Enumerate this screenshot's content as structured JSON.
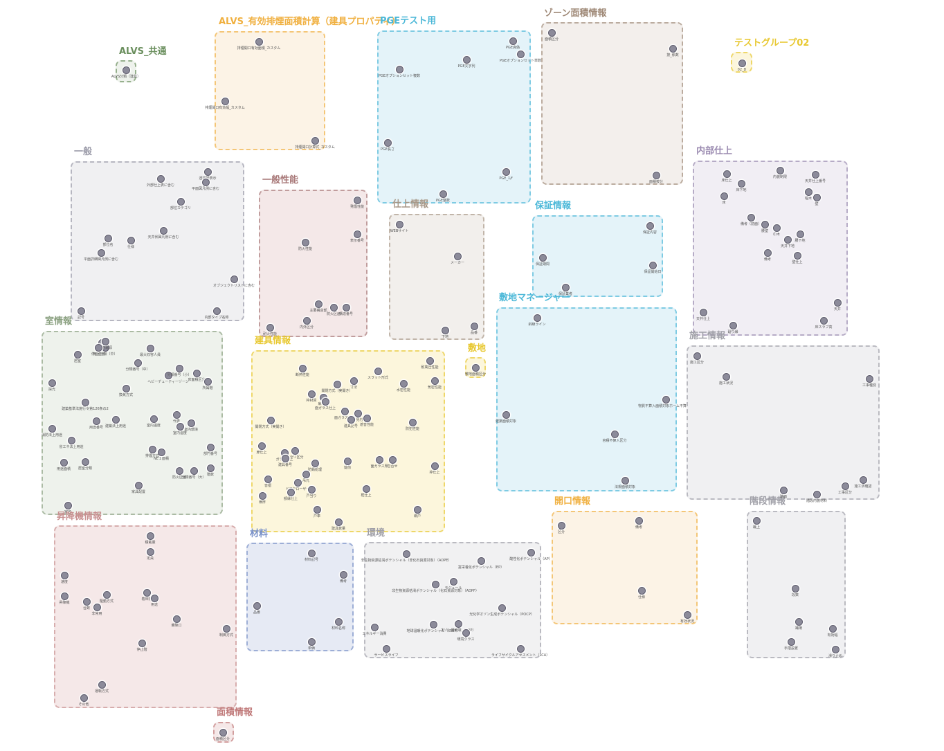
{
  "groups": [
    {
      "id": "alvs-common",
      "title": "ALVS_共通",
      "color": "#6b8f5e",
      "fill": "#eef2ec",
      "nodes": [
        {
          "label": "ALVS分類（建具）"
        }
      ]
    },
    {
      "id": "alvs-smoke",
      "title": "ALVS_有効排煙面積計算（建具プロパティ）",
      "color": "#f0b040",
      "fill": "#fcf3e6",
      "nodes": [
        {
          "label": "排煙開口有効面積_カスタム"
        },
        {
          "label": "排煙開口有効幅_カスタム"
        },
        {
          "label": "排煙開口計算式_カスタム"
        }
      ]
    },
    {
      "id": "pge-test",
      "title": "PGEテスト用",
      "color": "#4cb8d8",
      "fill": "#e4f3f9",
      "nodes": [
        {
          "label": "PGE真偽"
        },
        {
          "label": "PGEオプションセット複数"
        },
        {
          "label": "PGE文字列"
        },
        {
          "label": "PGEオプションセット単数"
        },
        {
          "label": "PGE長さ"
        },
        {
          "label": "PGE_1/f"
        },
        {
          "label": "PGE整数"
        }
      ]
    },
    {
      "id": "zone-area",
      "title": "ゾーン面積情報",
      "color": "#a08a78",
      "fill": "#f3efec",
      "nodes": [
        {
          "label": "面積区分"
        },
        {
          "label": "按_係数"
        },
        {
          "label": "面積按分"
        }
      ]
    },
    {
      "id": "test-group",
      "title": "テストグループ02",
      "color": "#e8c830",
      "fill": "#fcf6dc",
      "nodes": [
        {
          "label": "02_D"
        }
      ]
    },
    {
      "id": "general",
      "title": "一般",
      "color": "#9a9aa8",
      "fill": "#f0f0f2",
      "nodes": [
        {
          "label": "外部仕上表に含む"
        },
        {
          "label": "透視図表示"
        },
        {
          "label": "平面図凡例に含む"
        },
        {
          "label": "部位カテゴリ"
        },
        {
          "label": "天井伏図凡例に含む"
        },
        {
          "label": "部位名"
        },
        {
          "label": "仕様"
        },
        {
          "label": "平面詳細図凡例に含む"
        },
        {
          "label": "オブジェクトリストに含む"
        },
        {
          "label": "記号"
        },
        {
          "label": "内部タイプ名称"
        }
      ]
    },
    {
      "id": "general-perf",
      "title": "一般性能",
      "color": "#a87878",
      "fill": "#f4e8e8",
      "nodes": [
        {
          "label": "発煙性能"
        },
        {
          "label": "防火性能"
        },
        {
          "label": "表示番号"
        },
        {
          "label": "主要構造部"
        },
        {
          "label": "防火区画"
        },
        {
          "label": "構造番号"
        },
        {
          "label": "内外区分"
        },
        {
          "label": "耐火性能"
        }
      ]
    },
    {
      "id": "finish",
      "title": "仕上情報",
      "color": "#a89888",
      "fill": "#f2efec",
      "nodes": [
        {
          "label": "WEBサイト"
        },
        {
          "label": "メーカー"
        },
        {
          "label": "品番"
        },
        {
          "label": "下地"
        }
      ]
    },
    {
      "id": "warranty",
      "title": "保証情報",
      "color": "#4cb8d8",
      "fill": "#e4f3f9",
      "nodes": [
        {
          "label": "保証内容"
        },
        {
          "label": "保証期間"
        },
        {
          "label": "保証開始日"
        },
        {
          "label": "保証業者"
        }
      ]
    },
    {
      "id": "interior",
      "title": "内部仕上",
      "color": "#9a8ab0",
      "fill": "#f1eef4",
      "nodes": [
        {
          "label": "床仕上"
        },
        {
          "label": "内装制限"
        },
        {
          "label": "天井仕上番号"
        },
        {
          "label": "床下地"
        },
        {
          "label": "幅木"
        },
        {
          "label": "床"
        },
        {
          "label": "壁"
        },
        {
          "label": "備考（前面）"
        },
        {
          "label": "腰壁"
        },
        {
          "label": "巾木"
        },
        {
          "label": "腰下地"
        },
        {
          "label": "天井下地"
        },
        {
          "label": "備考"
        },
        {
          "label": "壁仕上"
        },
        {
          "label": "天井"
        },
        {
          "label": "天井仕上"
        },
        {
          "label": "廻り縁"
        },
        {
          "label": "床スラブ高"
        }
      ]
    },
    {
      "id": "site-manager",
      "title": "敷地マネージャー",
      "color": "#4cb8d8",
      "fill": "#e4f3f9",
      "nodes": [
        {
          "label": "斜線ライン"
        },
        {
          "label": "建築面積対象"
        },
        {
          "label": "物質不算入面積対象ホーム不算区分"
        },
        {
          "label": "容積不算入区分"
        },
        {
          "label": "法規面積対象"
        }
      ]
    },
    {
      "id": "room",
      "title": "室情報",
      "color": "#8aa080",
      "fill": "#eef2ec",
      "nodes": [
        {
          "label": "用途"
        },
        {
          "label": "最大収容人員"
        },
        {
          "label": "居室"
        },
        {
          "label": "用途分類（中）"
        },
        {
          "label": "分類番号（中）"
        },
        {
          "label": "ヘビーデューティーゾーン"
        },
        {
          "label": "分類番号（小）"
        },
        {
          "label": "床面積区分"
        },
        {
          "label": "採光"
        },
        {
          "label": "換気方式"
        },
        {
          "label": "所属階"
        },
        {
          "label": "建築基準法施行令第126条の2"
        },
        {
          "label": "建築法上用途"
        },
        {
          "label": "用途番号"
        },
        {
          "label": "室内温度"
        },
        {
          "label": "代表"
        },
        {
          "label": "室内環境"
        },
        {
          "label": "消防法上用途"
        },
        {
          "label": "室内湿度"
        },
        {
          "label": "省エネ法上用途"
        },
        {
          "label": "用途面積"
        },
        {
          "label": "部門番号"
        },
        {
          "label": "居室分類"
        },
        {
          "label": "NE１面積"
        },
        {
          "label": "分類番号（大）"
        },
        {
          "label": "排煙方式"
        },
        {
          "label": "階数"
        },
        {
          "label": "防火区画"
        },
        {
          "label": "家具配置"
        },
        {
          "label": "室名"
        }
      ]
    },
    {
      "id": "fittings",
      "title": "建具情報",
      "color": "#e8c830",
      "fill": "#fcf6dc",
      "nodes": [
        {
          "label": "耐風圧性能"
        },
        {
          "label": "断熱性能"
        },
        {
          "label": "スラット形式"
        },
        {
          "label": "気密性能"
        },
        {
          "label": "開閉方式（実開き）"
        },
        {
          "label": "寸法"
        },
        {
          "label": "水密性能"
        },
        {
          "label": "枠材質"
        },
        {
          "label": "扉材質"
        },
        {
          "label": "面ガラス仕上"
        },
        {
          "label": "面ガラス仕様"
        },
        {
          "label": "枠見付"
        },
        {
          "label": "建具記号"
        },
        {
          "label": "遮音性能"
        },
        {
          "label": "防犯性能"
        },
        {
          "label": "開閉方式（実開き）"
        },
        {
          "label": "扉仕上"
        },
        {
          "label": "ガラリ仕上"
        },
        {
          "label": "ガラリ区分"
        },
        {
          "label": "建具番号"
        },
        {
          "label": "防錆処理"
        },
        {
          "label": "錠前"
        },
        {
          "label": "面ガラス厚"
        },
        {
          "label": "召合せ"
        },
        {
          "label": "枠仕上"
        },
        {
          "label": "吊元"
        },
        {
          "label": "沓摺"
        },
        {
          "label": "ドアクローザー"
        },
        {
          "label": "戸当り"
        },
        {
          "label": "框仕上"
        },
        {
          "label": "額縁仕上"
        },
        {
          "label": "扉厚"
        },
        {
          "label": "戸車"
        },
        {
          "label": "建具数量"
        },
        {
          "label": "網戸"
        }
      ]
    },
    {
      "id": "site",
      "title": "敷地",
      "color": "#e8c830",
      "fill": "#fcf6dc",
      "nodes": [
        {
          "label": "敷地面積区分"
        }
      ]
    },
    {
      "id": "construction",
      "title": "施工情報",
      "color": "#a0a0a8",
      "fill": "#f0f0f2",
      "nodes": [
        {
          "label": "施工区分"
        },
        {
          "label": "施工状況"
        },
        {
          "label": "工事種別"
        },
        {
          "label": "工事区分"
        },
        {
          "label": "施工済確認"
        }
      ]
    },
    {
      "id": "elevator",
      "title": "昇降機情報",
      "color": "#c89090",
      "fill": "#f5e8e8",
      "nodes": [
        {
          "label": "積載量"
        },
        {
          "label": "定員"
        },
        {
          "label": "速度"
        },
        {
          "label": "昇降機"
        },
        {
          "label": "着床階"
        },
        {
          "label": "駆動方式"
        },
        {
          "label": "用途"
        },
        {
          "label": "台数"
        },
        {
          "label": "非常用"
        },
        {
          "label": "乗降口"
        },
        {
          "label": "制御方式"
        },
        {
          "label": "停止階"
        },
        {
          "label": "運転方式"
        },
        {
          "label": "その他"
        },
        {
          "label": "使用電源"
        },
        {
          "label": "停止位置"
        }
      ]
    },
    {
      "id": "material",
      "title": "材料",
      "color": "#7890c8",
      "fill": "#e6eaf4",
      "nodes": [
        {
          "label": "材料記号"
        },
        {
          "label": "備考"
        },
        {
          "label": "品番"
        },
        {
          "label": "材料名称"
        },
        {
          "label": "単価"
        }
      ]
    },
    {
      "id": "environment",
      "title": "環境",
      "color": "#a0a0a8",
      "fill": "#f1f1f2",
      "nodes": [
        {
          "label": "非生物資源枯渇ポテンシャル（非化石資源対象）（ADPE）"
        },
        {
          "label": "富栄養化ポテンシャル（EP）"
        },
        {
          "label": "酸性化ポテンシャル（AP）"
        },
        {
          "label": "非生物資源枯渇ポテンシャル（化石資源対象）（ADPF）"
        },
        {
          "label": "モジュール"
        },
        {
          "label": "光化学オゾン生成ポテンシャル（POCP）"
        },
        {
          "label": "エネルギー消費"
        },
        {
          "label": "地球温暖化ポテンシャル（GWP）"
        },
        {
          "label": "オゾン層破壊（ODP）"
        },
        {
          "label": "環境クラス"
        },
        {
          "label": "サービスライフ"
        },
        {
          "label": "ライフサイクルアセスメント（LCA）"
        }
      ]
    },
    {
      "id": "opening",
      "title": "開口情報",
      "color": "#f0b040",
      "fill": "#fcf3e6",
      "nodes": [
        {
          "label": "区分"
        },
        {
          "label": "備考"
        },
        {
          "label": "仕様"
        },
        {
          "label": "有効状況"
        }
      ]
    },
    {
      "id": "stairs",
      "title": "階段情報",
      "color": "#a0a0a8",
      "fill": "#f0f0f2",
      "nodes": [
        {
          "label": "踏面"
        },
        {
          "label": "蹴上"
        },
        {
          "label": "段数"
        },
        {
          "label": "踊場"
        },
        {
          "label": "手摺設置"
        },
        {
          "label": "有効幅"
        },
        {
          "label": "滑り止め"
        },
        {
          "label": "階段内装材料"
        }
      ]
    },
    {
      "id": "area-info",
      "title": "面積情報",
      "color": "#c07a7a",
      "fill": "#f5e8e8",
      "nodes": [
        {
          "label": "面積区分"
        }
      ]
    }
  ]
}
